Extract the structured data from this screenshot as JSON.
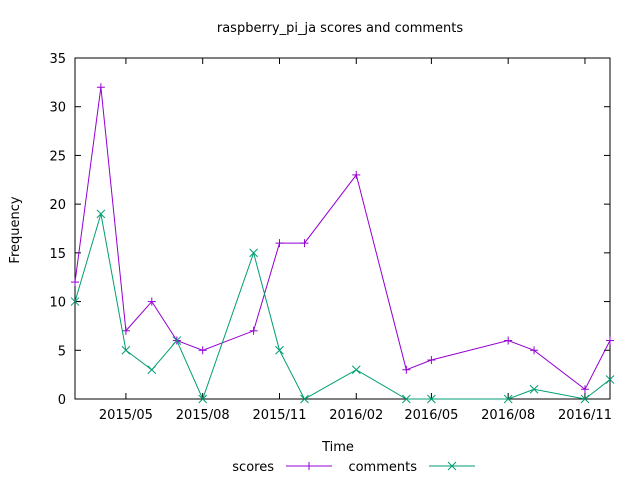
{
  "chart_data": {
    "type": "line",
    "title": "raspberry_pi_ja scores and comments",
    "xlabel": "Time",
    "ylabel": "Frequency",
    "ylim": [
      0,
      35
    ],
    "xlim": [
      "2015-03-01",
      "2016-12-01"
    ],
    "yticks": [
      "0",
      "5",
      "10",
      "15",
      "20",
      "25",
      "30",
      "35"
    ],
    "xticks": [
      {
        "label": "2015/05",
        "date": "2015-05-01"
      },
      {
        "label": "2015/08",
        "date": "2015-08-01"
      },
      {
        "label": "2015/11",
        "date": "2015-11-01"
      },
      {
        "label": "2016/02",
        "date": "2016-02-01"
      },
      {
        "label": "2016/05",
        "date": "2016-05-01"
      },
      {
        "label": "2016/08",
        "date": "2016-08-01"
      },
      {
        "label": "2016/11",
        "date": "2016-11-01"
      }
    ],
    "grid": false,
    "legend_position": "bottom",
    "series": [
      {
        "name": "scores",
        "color": "#9400d3",
        "marker": "plus",
        "points": [
          {
            "x": "2015-03-01",
            "y": 12
          },
          {
            "x": "2015-04-01",
            "y": 32
          },
          {
            "x": "2015-05-01",
            "y": 7
          },
          {
            "x": "2015-06-01",
            "y": 10
          },
          {
            "x": "2015-07-01",
            "y": 6
          },
          {
            "x": "2015-08-01",
            "y": 5
          },
          {
            "x": "2015-10-01",
            "y": 7
          },
          {
            "x": "2015-11-01",
            "y": 16
          },
          {
            "x": "2015-12-01",
            "y": 16
          },
          {
            "x": "2016-02-01",
            "y": 23
          },
          {
            "x": "2016-04-01",
            "y": 3
          },
          {
            "x": "2016-05-01",
            "y": 4
          },
          {
            "x": "2016-08-01",
            "y": 6
          },
          {
            "x": "2016-09-01",
            "y": 5
          },
          {
            "x": "2016-11-01",
            "y": 1
          },
          {
            "x": "2016-12-01",
            "y": 6
          }
        ]
      },
      {
        "name": "comments",
        "color": "#009e73",
        "marker": "cross",
        "points": [
          {
            "x": "2015-03-01",
            "y": 10
          },
          {
            "x": "2015-04-01",
            "y": 19
          },
          {
            "x": "2015-05-01",
            "y": 5
          },
          {
            "x": "2015-06-01",
            "y": 3
          },
          {
            "x": "2015-07-01",
            "y": 6
          },
          {
            "x": "2015-08-01",
            "y": 0
          },
          {
            "x": "2015-10-01",
            "y": 15
          },
          {
            "x": "2015-11-01",
            "y": 5
          },
          {
            "x": "2015-12-01",
            "y": 0
          },
          {
            "x": "2016-02-01",
            "y": 3
          },
          {
            "x": "2016-04-01",
            "y": 0
          },
          {
            "x": "2016-05-01",
            "y": 0
          },
          {
            "x": "2016-08-01",
            "y": 0
          },
          {
            "x": "2016-09-01",
            "y": 1
          },
          {
            "x": "2016-11-01",
            "y": 0
          },
          {
            "x": "2016-12-01",
            "y": 2
          }
        ]
      }
    ]
  }
}
